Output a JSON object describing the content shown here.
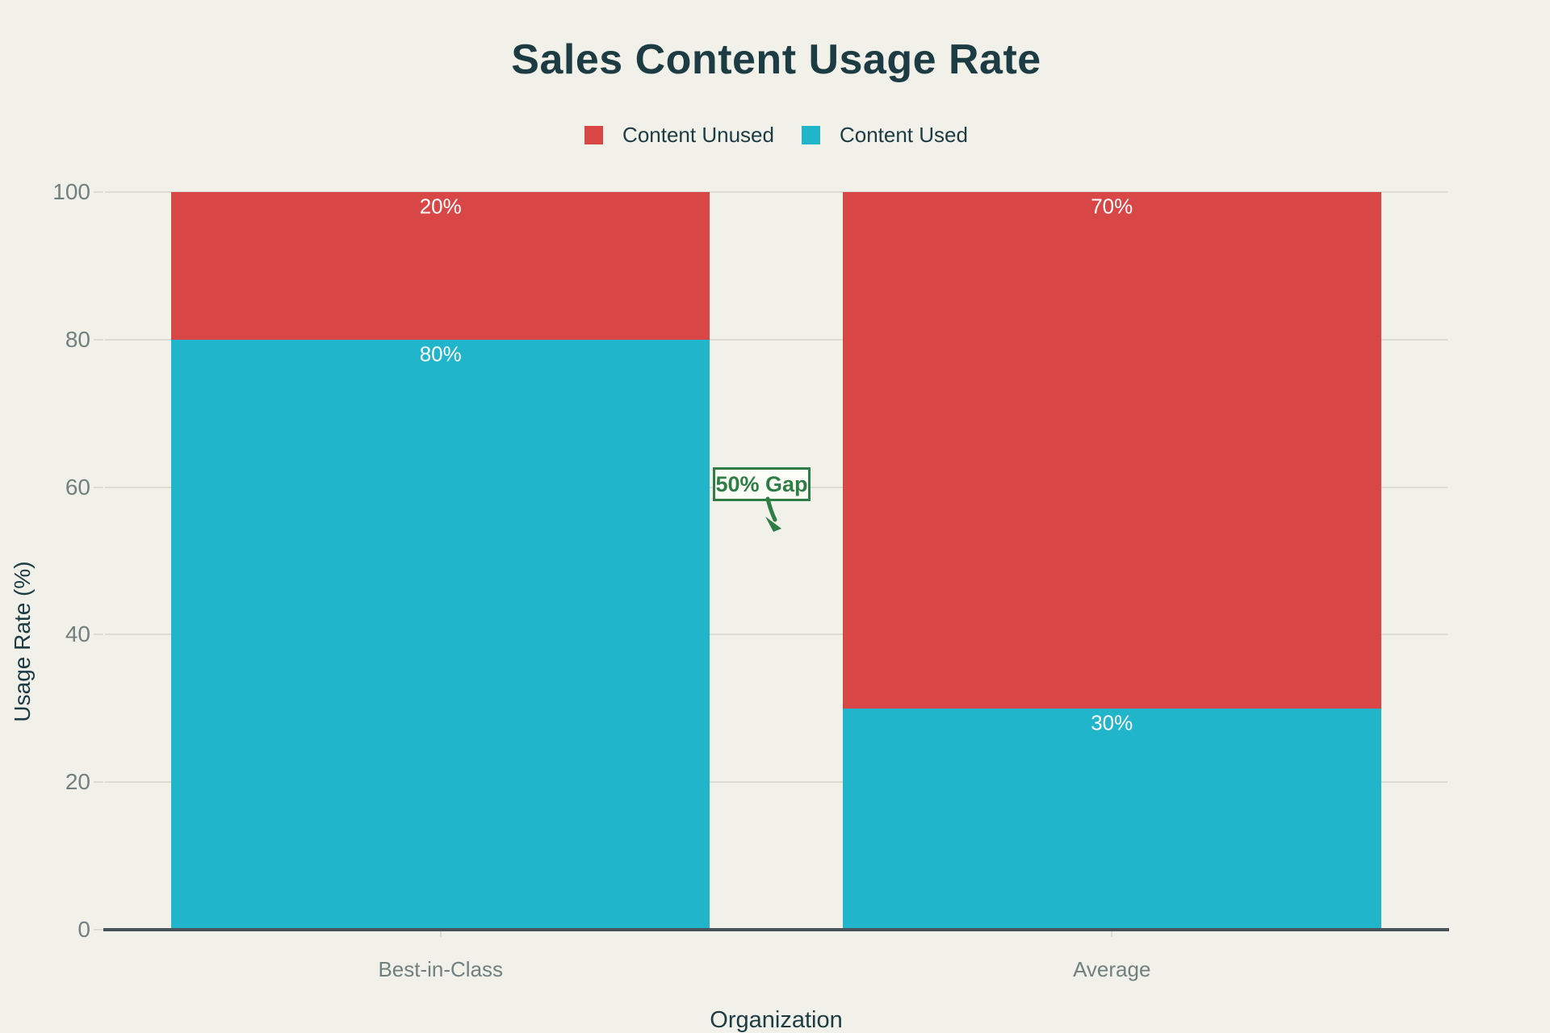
{
  "title": "Sales Content Usage Rate",
  "legend": {
    "items": [
      {
        "label": "Content Unused",
        "color": "#D94646"
      },
      {
        "label": "Content Used",
        "color": "#20B5CB"
      }
    ]
  },
  "annotation": {
    "text": "50% Gap",
    "color": "#2E7D45"
  },
  "chart_data": {
    "type": "bar",
    "stacked": true,
    "title": "Sales Content Usage Rate",
    "xlabel": "Organization",
    "ylabel": "Usage Rate (%)",
    "categories": [
      "Best-in-Class",
      "Average"
    ],
    "series": [
      {
        "name": "Content Used",
        "color": "#20B5CB",
        "values": [
          80,
          30
        ],
        "data_labels": [
          "80%",
          "30%"
        ]
      },
      {
        "name": "Content Unused",
        "color": "#D94646",
        "values": [
          20,
          70
        ],
        "data_labels": [
          "20%",
          "70%"
        ]
      }
    ],
    "ylim": [
      0,
      100
    ],
    "yticks": [
      0,
      20,
      40,
      60,
      80,
      100
    ],
    "grid": true,
    "legend_position": "top",
    "annotation": {
      "text": "50% Gap",
      "between_values": [
        80,
        30
      ]
    }
  },
  "colors": {
    "background": "#F1F1EA",
    "dark_text": "#1C3B43",
    "tick_text": "#71807F",
    "gridline": "#DCDCD3",
    "axis_line": "#47525A",
    "annotation_green": "#2E7D45"
  }
}
